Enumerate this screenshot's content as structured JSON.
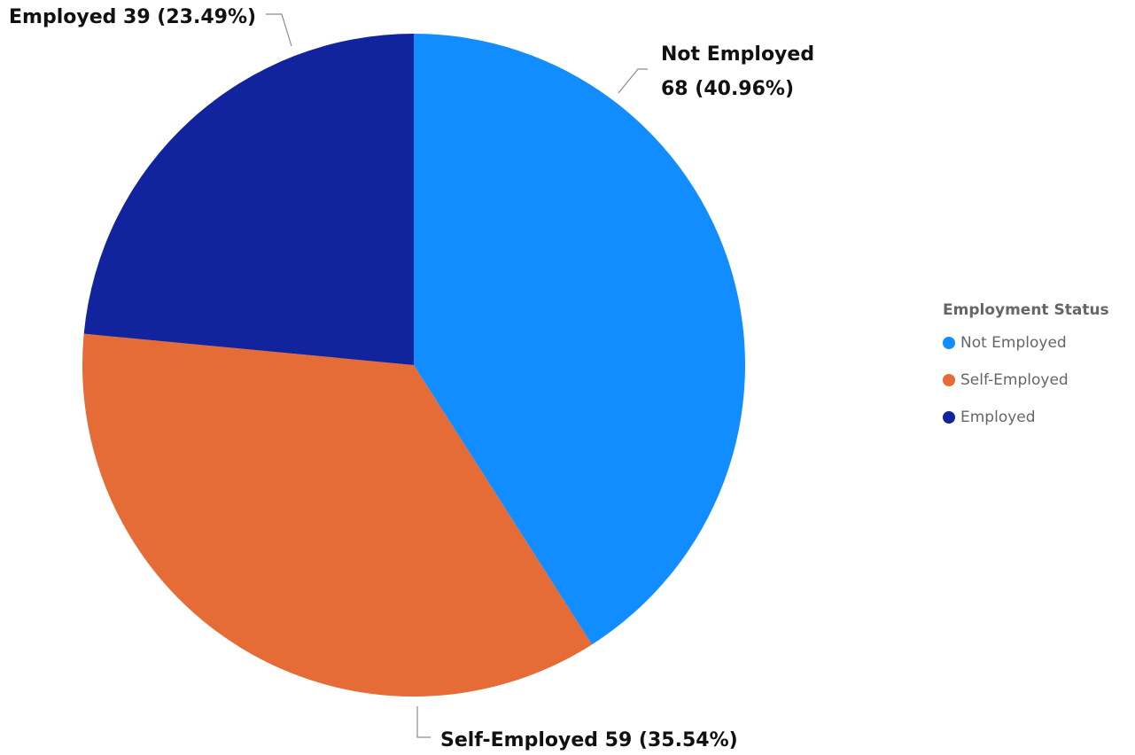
{
  "chart_data": {
    "type": "pie",
    "legend": {
      "title": "Employment Status",
      "placement": "right"
    },
    "slices": [
      {
        "name": "Not Employed",
        "value": 68,
        "percent": "40.96%",
        "color": "#118DFF",
        "label_line1": "Not Employed",
        "label_line2": "68 (40.96%)"
      },
      {
        "name": "Self-Employed",
        "value": 59,
        "percent": "35.54%",
        "color": "#E66C37",
        "label_line1": "Self-Employed 59 (35.54%)",
        "label_line2": ""
      },
      {
        "name": "Employed",
        "value": 39,
        "percent": "23.49%",
        "color": "#12239E",
        "label_line1": "Employed 39 (23.49%)",
        "label_line2": ""
      }
    ]
  }
}
